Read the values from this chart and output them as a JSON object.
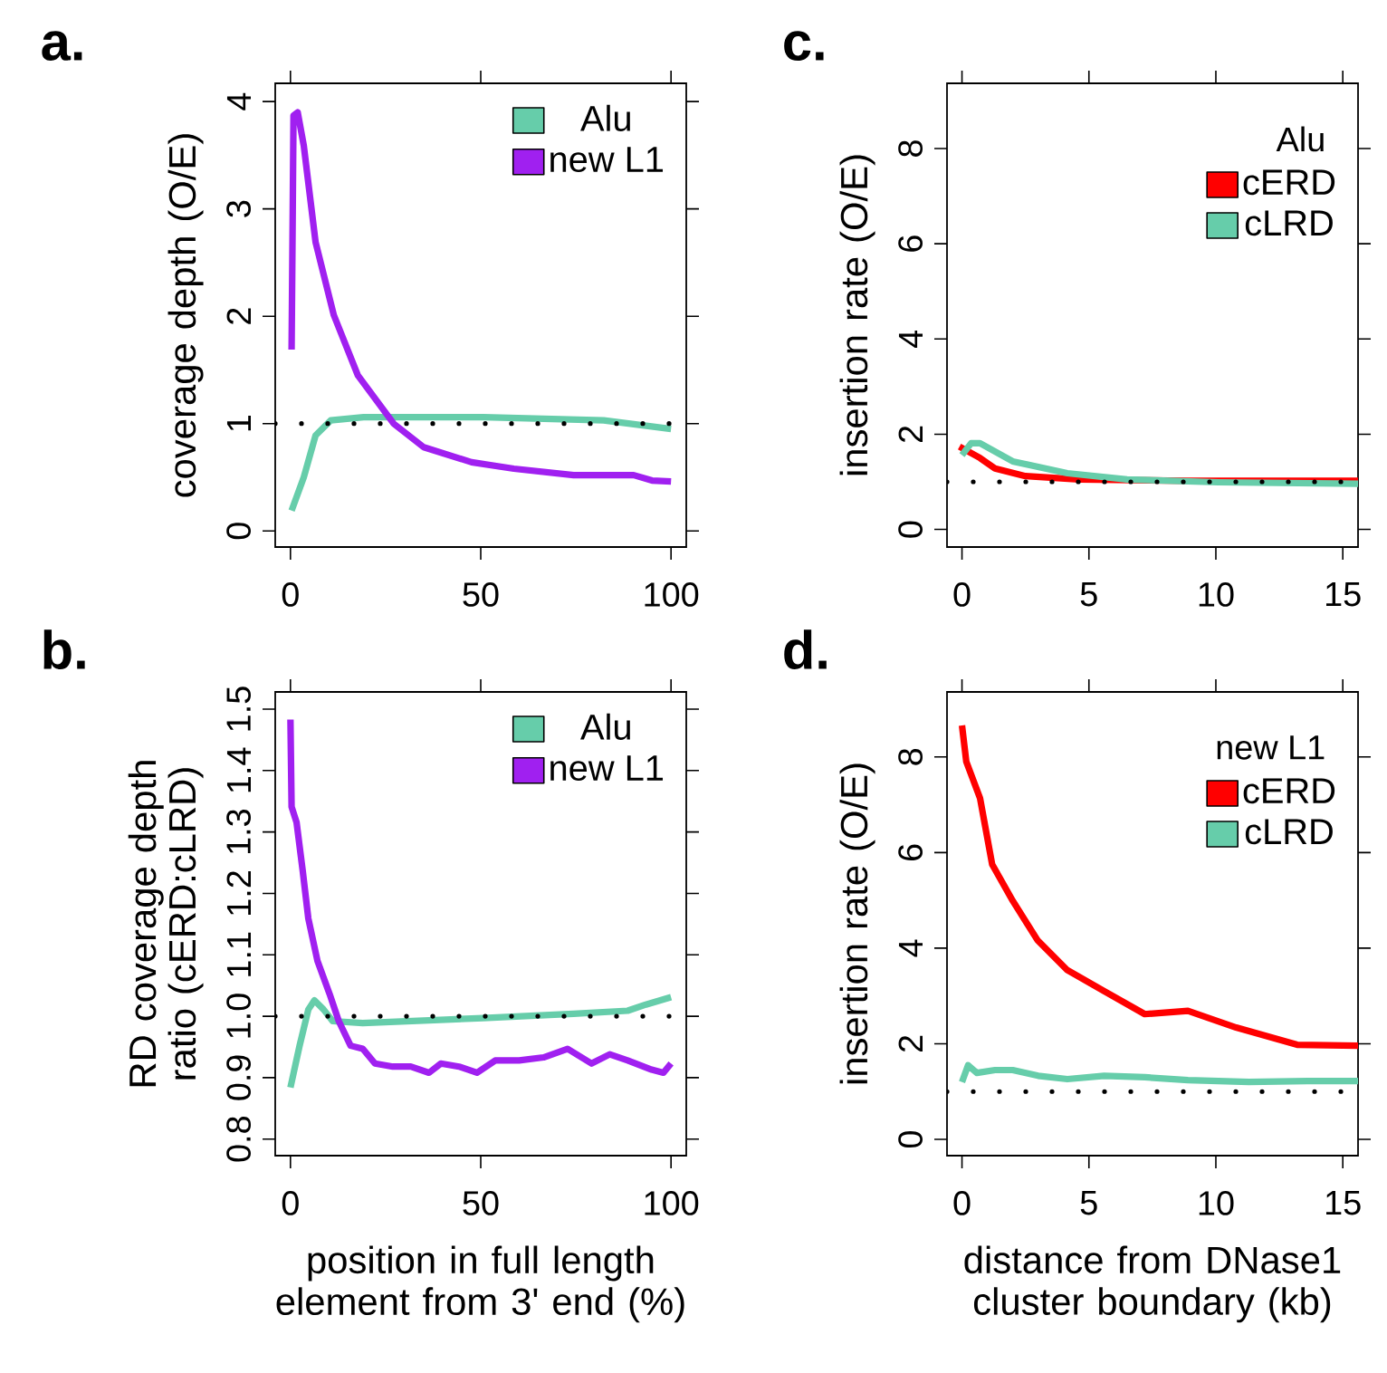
{
  "chart_data": [
    {
      "type": "line",
      "title": "a.",
      "ylabel": "coverage depth (O/E)",
      "xlim": [
        -4,
        104
      ],
      "xticks": [
        0,
        50,
        100
      ],
      "ylim": [
        -0.15,
        4.17
      ],
      "yticks": [
        0,
        1,
        2,
        3,
        4
      ],
      "legend": "top right",
      "series": [
        {
          "name": "Alu",
          "color": "#66cdaa",
          "x": [
            0.3,
            3.5,
            6.6,
            10.6,
            19.2,
            50.8,
            82.3,
            100
          ],
          "values": [
            0.19,
            0.5,
            0.89,
            1.03,
            1.06,
            1.06,
            1.03,
            0.95
          ]
        },
        {
          "name": "new L1",
          "color": "#a020f0",
          "x": [
            0.3,
            0.8,
            1.9,
            3.5,
            6.6,
            11.4,
            17.7,
            27.1,
            35,
            47.6,
            58.7,
            74.4,
            90.2,
            95,
            100
          ],
          "values": [
            1.69,
            3.87,
            3.9,
            3.59,
            2.69,
            2.01,
            1.45,
            1.0,
            0.78,
            0.64,
            0.58,
            0.52,
            0.52,
            0.47,
            0.46
          ]
        }
      ],
      "ref_lines": [
        {
          "axis": "y",
          "value": 1,
          "color": "#000000",
          "line_style": "dotted"
        }
      ]
    },
    {
      "type": "line",
      "title": "c.",
      "ylabel": "insertion rate (O/E)",
      "legend_title": "Alu",
      "xlim": [
        -0.59,
        15.6
      ],
      "xticks": [
        0,
        5,
        10,
        15
      ],
      "ylim": [
        -0.37,
        9.37
      ],
      "yticks": [
        0,
        2,
        4,
        6,
        8
      ],
      "legend": "top right",
      "series": [
        {
          "name": "cERD",
          "color": "#ff0000",
          "x": [
            -0.1,
            0.71,
            1.3,
            2.5,
            4.6,
            8.9,
            15.6
          ],
          "values": [
            1.74,
            1.5,
            1.28,
            1.12,
            1.05,
            1.02,
            1.02
          ]
        },
        {
          "name": "cLRD",
          "color": "#66cdaa",
          "x": [
            0,
            0.36,
            0.71,
            2.0,
            4.15,
            6.5,
            10.1,
            15.6
          ],
          "values": [
            1.56,
            1.81,
            1.81,
            1.43,
            1.18,
            1.05,
            0.99,
            0.96
          ]
        }
      ],
      "ref_lines": [
        {
          "axis": "y",
          "value": 1,
          "color": "#000000",
          "line_style": "dotted"
        }
      ]
    },
    {
      "type": "line",
      "title": "b.",
      "xlabel": "position in full length element from 3' end (%)",
      "ylabel": "RD coverage depth ratio (cERD:cLRD)",
      "xlim": [
        -4,
        104
      ],
      "xticks": [
        0,
        50,
        100
      ],
      "ylim": [
        0.773,
        1.528
      ],
      "yticks": [
        {
          "value": 0.8,
          "label": "0.8"
        },
        {
          "value": 0.9,
          "label": "0.9"
        },
        {
          "value": 1.0,
          "label": "1.0"
        },
        {
          "value": 1.1,
          "label": "1.1"
        },
        {
          "value": 1.2,
          "label": "1.2"
        },
        {
          "value": 1.3,
          "label": "1.3"
        },
        {
          "value": 1.4,
          "label": "1.4"
        },
        {
          "value": 1.5,
          "label": "1.5"
        }
      ],
      "legend": "top right",
      "series": [
        {
          "name": "Alu",
          "color": "#66cdaa",
          "x": [
            0,
            2.4,
            4.7,
            6.3,
            8.7,
            11.1,
            19,
            50.6,
            74.4,
            88.6,
            93.4,
            100
          ],
          "values": [
            0.884,
            0.952,
            1.011,
            1.026,
            1.011,
            0.992,
            0.989,
            0.997,
            1.004,
            1.009,
            1.019,
            1.031
          ]
        },
        {
          "name": "new L1",
          "color": "#a020f0",
          "x": [
            0,
            0.3,
            1.6,
            3.2,
            4.7,
            7.1,
            10.3,
            12.7,
            15.8,
            19,
            22.2,
            26.9,
            31.6,
            36.4,
            39.5,
            44.3,
            49,
            53.8,
            60.1,
            66.5,
            72.8,
            79.1,
            83.9,
            88.6,
            94.9,
            98,
            100
          ],
          "values": [
            1.483,
            1.341,
            1.316,
            1.238,
            1.159,
            1.09,
            1.036,
            0.992,
            0.952,
            0.947,
            0.923,
            0.918,
            0.918,
            0.908,
            0.923,
            0.918,
            0.908,
            0.928,
            0.928,
            0.933,
            0.947,
            0.923,
            0.938,
            0.928,
            0.913,
            0.908,
            0.923
          ]
        }
      ],
      "ref_lines": [
        {
          "axis": "y",
          "value": 1,
          "color": "#000000",
          "line_style": "dotted"
        }
      ]
    },
    {
      "type": "line",
      "title": "d.",
      "xlabel": "distance from DNase1 cluster boundary (kb)",
      "ylabel": "insertion rate (O/E)",
      "legend_title": "new L1",
      "xlim": [
        -0.59,
        15.6
      ],
      "xticks": [
        0,
        5,
        10,
        15
      ],
      "ylim": [
        -0.34,
        9.36
      ],
      "yticks": [
        0,
        2,
        4,
        6,
        8
      ],
      "legend": "top right",
      "series": [
        {
          "name": "cERD",
          "color": "#ff0000",
          "x": [
            0,
            0.17,
            0.71,
            1.19,
            2.0,
            2.97,
            4.15,
            5.6,
            7.2,
            8.9,
            10.8,
            13.2,
            15.6
          ],
          "values": [
            8.66,
            7.9,
            7.14,
            5.75,
            4.99,
            4.17,
            3.54,
            3.1,
            2.62,
            2.69,
            2.34,
            1.98,
            1.96
          ]
        },
        {
          "name": "cLRD",
          "color": "#66cdaa",
          "x": [
            0,
            0.24,
            0.59,
            1.3,
            2.0,
            3.0,
            4.15,
            5.6,
            7.2,
            8.9,
            11.3,
            13.6,
            15.6
          ],
          "values": [
            1.2,
            1.55,
            1.39,
            1.45,
            1.45,
            1.33,
            1.26,
            1.33,
            1.3,
            1.24,
            1.2,
            1.22,
            1.22
          ]
        }
      ],
      "ref_lines": [
        {
          "axis": "y",
          "value": 1,
          "color": "#000000",
          "line_style": "dotted"
        }
      ]
    }
  ]
}
